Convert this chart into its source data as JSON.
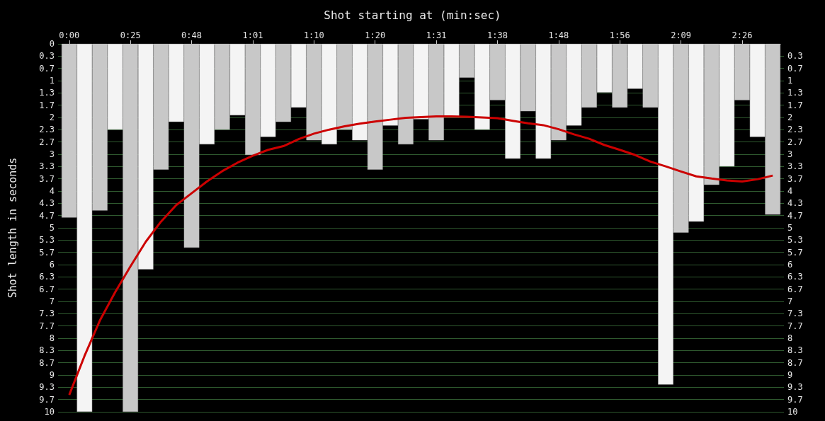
{
  "chart_data": {
    "type": "bar",
    "title": "Shot starting at (min:sec)",
    "ylabel": "Shot length in seconds",
    "categories": [
      "0:00",
      null,
      null,
      null,
      "0:25",
      null,
      null,
      null,
      "0:48",
      null,
      null,
      null,
      "1:01",
      null,
      null,
      null,
      "1:10",
      null,
      null,
      null,
      "1:20",
      null,
      null,
      null,
      "1:31",
      null,
      null,
      null,
      "1:38",
      null,
      null,
      null,
      "1:48",
      null,
      null,
      null,
      "1:56",
      null,
      null,
      null,
      "2:09",
      null,
      null,
      null,
      "2:26",
      null,
      null
    ],
    "series": [
      {
        "values": [
          4.72,
          10,
          4.53,
          2.33,
          10,
          6.13,
          3.42,
          2.12,
          5.54,
          2.73,
          2.33,
          1.94,
          3.02,
          2.53,
          2.12,
          1.73,
          2.62,
          2.73,
          2.33,
          2.62,
          3.42,
          2.22,
          2.73,
          2.05,
          2.62,
          2.0,
          0.92,
          2.33,
          1.53,
          3.12,
          1.83,
          3.12,
          2.62,
          2.22,
          1.73,
          1.32,
          1.73,
          1.22,
          1.73,
          9.26,
          5.13,
          4.83,
          3.83,
          3.33,
          1.53,
          2.53,
          4.64
        ],
        "colors": [
          "#c8c8c8",
          "#f4f4f4",
          "#c8c8c8",
          "#f4f4f4",
          "#c8c8c8",
          "#f4f4f4",
          "#c8c8c8",
          "#f4f4f4",
          "#c8c8c8",
          "#f4f4f4",
          "#c8c8c8",
          "#f4f4f4",
          "#c8c8c8",
          "#f4f4f4",
          "#c8c8c8",
          "#f4f4f4",
          "#c8c8c8",
          "#f4f4f4",
          "#c8c8c8",
          "#f4f4f4",
          "#c8c8c8",
          "#f4f4f4",
          "#c8c8c8",
          "#f4f4f4",
          "#c8c8c8",
          "#f4f4f4",
          "#c8c8c8",
          "#f4f4f4",
          "#c8c8c8",
          "#f4f4f4",
          "#c8c8c8",
          "#f4f4f4",
          "#c8c8c8",
          "#f4f4f4",
          "#c8c8c8",
          "#f4f4f4",
          "#c8c8c8",
          "#f4f4f4",
          "#c8c8c8",
          "#f4f4f4",
          "#c8c8c8",
          "#f4f4f4",
          "#c8c8c8",
          "#f4f4f4",
          "#c8c8c8",
          "#f4f4f4",
          "#c8c8c8"
        ]
      },
      {
        "type": "line",
        "color": "#cc0000",
        "marker": "none",
        "values": [
          9.54,
          8.48,
          7.52,
          6.75,
          6.05,
          5.38,
          4.83,
          4.38,
          4.06,
          3.74,
          3.46,
          3.23,
          3.04,
          2.88,
          2.78,
          2.59,
          2.44,
          2.33,
          2.24,
          2.17,
          2.11,
          2.06,
          2.01,
          1.99,
          1.97,
          1.97,
          1.98,
          2.0,
          2.02,
          2.09,
          2.16,
          2.21,
          2.32,
          2.46,
          2.58,
          2.75,
          2.88,
          3.02,
          3.2,
          3.33,
          3.47,
          3.6,
          3.66,
          3.71,
          3.74,
          3.68,
          3.58
        ]
      }
    ],
    "ylim": [
      10,
      0
    ],
    "yticks": [
      0,
      {
        "value": 0.3333,
        "label": "0.3"
      },
      {
        "value": 0.6667,
        "label": "0.7"
      },
      1,
      {
        "value": 1.3333,
        "label": "1.3"
      },
      {
        "value": 1.6667,
        "label": "1.7"
      },
      2,
      {
        "value": 2.3333,
        "label": "2.3"
      },
      {
        "value": 2.6667,
        "label": "2.7"
      },
      3,
      {
        "value": 3.3333,
        "label": "3.3"
      },
      {
        "value": 3.6667,
        "label": "3.7"
      },
      4,
      {
        "value": 4.3333,
        "label": "4.3"
      },
      {
        "value": 4.6667,
        "label": "4.7"
      },
      5,
      {
        "value": 5.3333,
        "label": "5.3"
      },
      {
        "value": 5.6667,
        "label": "5.7"
      },
      6,
      {
        "value": 6.3333,
        "label": "6.3"
      },
      {
        "value": 6.6667,
        "label": "6.7"
      },
      7,
      {
        "value": 7.3333,
        "label": "7.3"
      },
      {
        "value": 7.6667,
        "label": "7.7"
      },
      8,
      {
        "value": 8.3333,
        "label": "8.3"
      },
      {
        "value": 8.6667,
        "label": "8.7"
      },
      9,
      {
        "value": 9.3333,
        "label": "9.3"
      },
      {
        "value": 9.6667,
        "label": "9.7"
      },
      10
    ],
    "y2lim": [
      10,
      0
    ],
    "y2ticks": [
      {
        "value": 0.3333,
        "label": "0.3"
      },
      {
        "value": 0.6667,
        "label": "0.7"
      },
      1,
      {
        "value": 1.3333,
        "label": "1.3"
      },
      {
        "value": 1.6667,
        "label": "1.7"
      },
      2,
      {
        "value": 2.3333,
        "label": "2.3"
      },
      {
        "value": 2.6667,
        "label": "2.7"
      },
      3,
      {
        "value": 3.3333,
        "label": "3.3"
      },
      {
        "value": 3.6667,
        "label": "3.7"
      },
      4,
      {
        "value": 4.3333,
        "label": "4.3"
      },
      {
        "value": 4.6667,
        "label": "4.7"
      },
      5,
      {
        "value": 5.3333,
        "label": "5.3"
      },
      {
        "value": 5.6667,
        "label": "5.7"
      },
      6,
      {
        "value": 6.3333,
        "label": "6.3"
      },
      {
        "value": 6.6667,
        "label": "6.7"
      },
      7,
      {
        "value": 7.3333,
        "label": "7.3"
      },
      {
        "value": 7.6667,
        "label": "7.7"
      },
      8,
      {
        "value": 8.3333,
        "label": "8.3"
      },
      {
        "value": 8.6667,
        "label": "8.7"
      },
      9,
      {
        "value": 9.3333,
        "label": "9.3"
      },
      {
        "value": 9.6667,
        "label": "9.7"
      },
      10
    ],
    "grid": "y"
  }
}
